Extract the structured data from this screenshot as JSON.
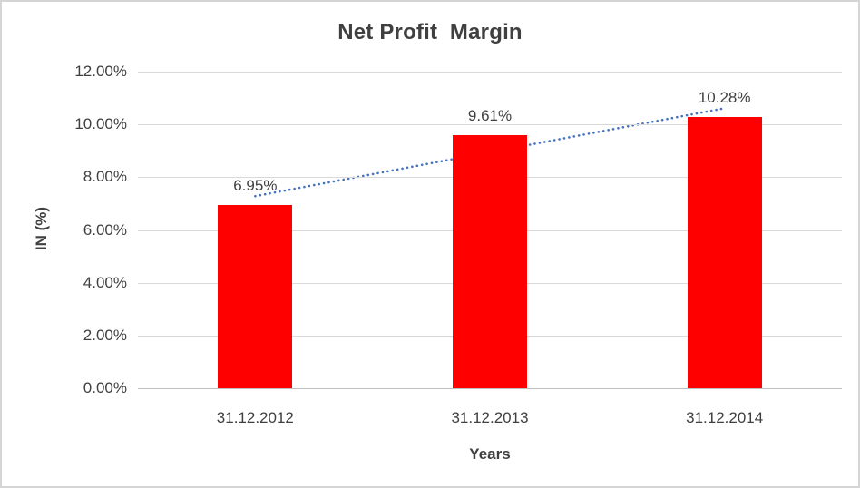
{
  "chart_data": {
    "type": "bar",
    "title": "Net Profit  Margin",
    "categories": [
      "31.12.2012",
      "31.12.2013",
      "31.12.2014"
    ],
    "values": [
      6.95,
      9.61,
      10.28
    ],
    "data_labels": [
      "6.95%",
      "9.61%",
      "10.28%"
    ],
    "xlabel": "Years",
    "ylabel": "IN (%)",
    "ylim": [
      0,
      12
    ],
    "ytick_step": 2,
    "ytick_labels": [
      "0.00%",
      "2.00%",
      "4.00%",
      "6.00%",
      "8.00%",
      "10.00%",
      "12.00%"
    ],
    "grid": true,
    "legend": "none",
    "trendline": {
      "kind": "linear",
      "style": "dotted",
      "span": "bar1-center-to-bar3-center"
    }
  },
  "colors": {
    "bar": "#ff0000",
    "trendline": "#4472c4",
    "gridline": "#d9d9d9",
    "axis_line": "#bfbfbf",
    "text": "#404040",
    "frame_border": "#d5d5d5",
    "background": "#ffffff"
  }
}
